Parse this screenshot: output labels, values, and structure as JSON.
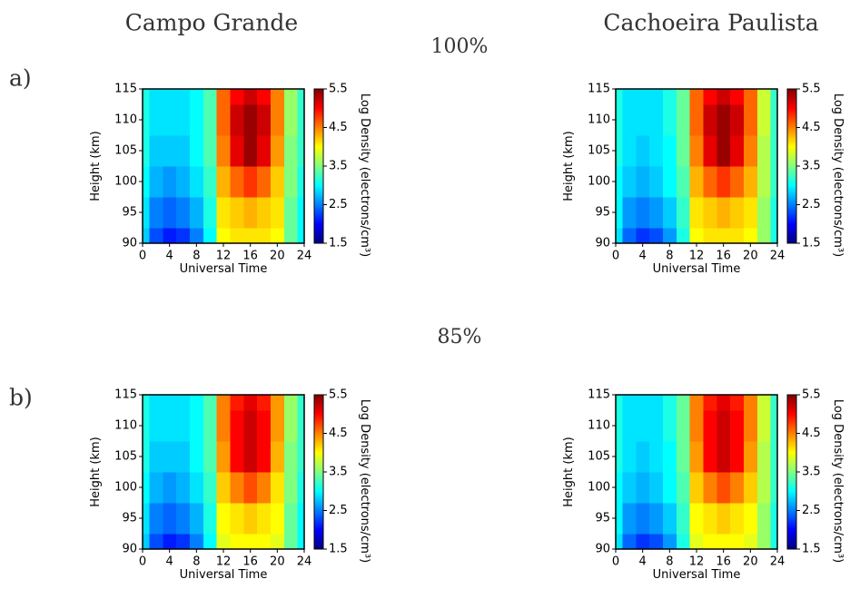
{
  "figure": {
    "columns": [
      "Campo Grande",
      "Cachoeira Paulista"
    ],
    "rows": [
      {
        "label": "a)",
        "title": "100%"
      },
      {
        "label": "b)",
        "title": "85%"
      }
    ]
  },
  "chart_data": [
    {
      "type": "heatmap",
      "xlabel": "Universal Time",
      "ylabel": "Height (km)",
      "colorbar_label": "Log Density (electrons/cm³)",
      "colormap": "jet",
      "x": [
        0,
        2,
        4,
        6,
        8,
        10,
        12,
        14,
        16,
        18,
        20,
        22,
        24
      ],
      "y": [
        90,
        95,
        100,
        105,
        110,
        115
      ],
      "z": [
        [
          2.8,
          2.3,
          2.1,
          2.2,
          2.5,
          3.0,
          4.0,
          4.1,
          4.1,
          4.1,
          4.0,
          3.4,
          3.0
        ],
        [
          2.9,
          2.5,
          2.4,
          2.5,
          2.7,
          3.1,
          4.1,
          4.2,
          4.3,
          4.2,
          4.1,
          3.4,
          3.0
        ],
        [
          3.0,
          2.7,
          2.6,
          2.7,
          2.9,
          3.2,
          4.3,
          4.6,
          4.8,
          4.6,
          4.2,
          3.5,
          3.1
        ],
        [
          3.1,
          2.8,
          2.8,
          2.8,
          3.0,
          3.3,
          4.5,
          5.1,
          5.4,
          5.1,
          4.4,
          3.5,
          3.2
        ],
        [
          3.1,
          2.9,
          2.9,
          2.9,
          3.0,
          3.3,
          4.6,
          5.2,
          5.4,
          5.2,
          4.5,
          3.6,
          3.2
        ],
        [
          3.1,
          2.9,
          2.9,
          2.9,
          3.0,
          3.3,
          4.6,
          5.0,
          5.2,
          5.0,
          4.5,
          3.6,
          3.2
        ]
      ],
      "xlim": [
        0,
        24
      ],
      "ylim": [
        90,
        115
      ],
      "xticks": [
        0,
        4,
        8,
        12,
        16,
        20,
        24
      ],
      "yticks": [
        90,
        95,
        100,
        105,
        110,
        115
      ],
      "clim": [
        1.5,
        5.5
      ],
      "cticks": [
        1.5,
        2.5,
        3.5,
        4.5,
        5.5
      ]
    },
    {
      "type": "heatmap",
      "xlabel": "Universal Time",
      "ylabel": "Height (km)",
      "colorbar_label": "Log Density (electrons/cm³)",
      "colormap": "jet",
      "x": [
        0,
        2,
        4,
        6,
        8,
        10,
        12,
        14,
        16,
        18,
        20,
        22,
        24
      ],
      "y": [
        90,
        95,
        100,
        105,
        110,
        115
      ],
      "z": [
        [
          2.9,
          2.4,
          2.2,
          2.3,
          2.6,
          3.1,
          4.0,
          4.1,
          4.1,
          4.1,
          4.0,
          3.6,
          3.1
        ],
        [
          3.0,
          2.6,
          2.5,
          2.6,
          2.8,
          3.2,
          4.1,
          4.2,
          4.3,
          4.2,
          4.1,
          3.6,
          3.1
        ],
        [
          3.0,
          2.8,
          2.7,
          2.8,
          3.0,
          3.3,
          4.3,
          4.6,
          4.8,
          4.6,
          4.3,
          3.7,
          3.2
        ],
        [
          3.1,
          2.9,
          2.8,
          2.9,
          3.0,
          3.4,
          4.5,
          5.1,
          5.4,
          5.1,
          4.5,
          3.7,
          3.2
        ],
        [
          3.1,
          2.9,
          2.9,
          2.9,
          3.1,
          3.4,
          4.6,
          5.2,
          5.4,
          5.2,
          4.6,
          3.8,
          3.2
        ],
        [
          3.1,
          2.9,
          2.9,
          2.9,
          3.1,
          3.4,
          4.6,
          5.0,
          5.2,
          5.0,
          4.6,
          3.8,
          3.2
        ]
      ],
      "xlim": [
        0,
        24
      ],
      "ylim": [
        90,
        115
      ],
      "xticks": [
        0,
        4,
        8,
        12,
        16,
        20,
        24
      ],
      "yticks": [
        90,
        95,
        100,
        105,
        110,
        115
      ],
      "clim": [
        1.5,
        5.5
      ],
      "cticks": [
        1.5,
        2.5,
        3.5,
        4.5,
        5.5
      ]
    },
    {
      "type": "heatmap",
      "xlabel": "Universal Time",
      "ylabel": "Height (km)",
      "colorbar_label": "Log Density (electrons/cm³)",
      "colormap": "jet",
      "x": [
        0,
        2,
        4,
        6,
        8,
        10,
        12,
        14,
        16,
        18,
        20,
        22,
        24
      ],
      "y": [
        90,
        95,
        100,
        105,
        110,
        115
      ],
      "z": [
        [
          2.8,
          2.3,
          2.1,
          2.2,
          2.5,
          3.0,
          3.9,
          4.0,
          4.0,
          4.0,
          3.9,
          3.4,
          3.0
        ],
        [
          2.9,
          2.5,
          2.4,
          2.5,
          2.7,
          3.1,
          4.0,
          4.1,
          4.2,
          4.1,
          4.0,
          3.4,
          3.0
        ],
        [
          3.0,
          2.7,
          2.6,
          2.7,
          2.9,
          3.2,
          4.2,
          4.5,
          4.7,
          4.5,
          4.1,
          3.5,
          3.1
        ],
        [
          3.1,
          2.8,
          2.8,
          2.8,
          3.0,
          3.3,
          4.4,
          5.0,
          5.2,
          5.0,
          4.3,
          3.5,
          3.2
        ],
        [
          3.1,
          2.9,
          2.9,
          2.9,
          3.0,
          3.3,
          4.5,
          5.0,
          5.2,
          5.0,
          4.4,
          3.6,
          3.2
        ],
        [
          3.1,
          2.9,
          2.9,
          2.9,
          3.0,
          3.3,
          4.5,
          4.9,
          5.1,
          4.9,
          4.4,
          3.6,
          3.2
        ]
      ],
      "xlim": [
        0,
        24
      ],
      "ylim": [
        90,
        115
      ],
      "xticks": [
        0,
        4,
        8,
        12,
        16,
        20,
        24
      ],
      "yticks": [
        90,
        95,
        100,
        105,
        110,
        115
      ],
      "clim": [
        1.5,
        5.5
      ],
      "cticks": [
        1.5,
        2.5,
        3.5,
        4.5,
        5.5
      ]
    },
    {
      "type": "heatmap",
      "xlabel": "Universal Time",
      "ylabel": "Height (km)",
      "colorbar_label": "Log Density (electrons/cm³)",
      "colormap": "jet",
      "x": [
        0,
        2,
        4,
        6,
        8,
        10,
        12,
        14,
        16,
        18,
        20,
        22,
        24
      ],
      "y": [
        90,
        95,
        100,
        105,
        110,
        115
      ],
      "z": [
        [
          2.9,
          2.4,
          2.2,
          2.3,
          2.6,
          3.1,
          3.9,
          4.0,
          4.0,
          4.0,
          3.9,
          3.6,
          3.1
        ],
        [
          3.0,
          2.6,
          2.5,
          2.6,
          2.8,
          3.2,
          4.0,
          4.1,
          4.2,
          4.1,
          4.0,
          3.6,
          3.1
        ],
        [
          3.0,
          2.8,
          2.7,
          2.8,
          3.0,
          3.3,
          4.2,
          4.5,
          4.7,
          4.5,
          4.2,
          3.7,
          3.2
        ],
        [
          3.1,
          2.9,
          2.8,
          2.9,
          3.0,
          3.4,
          4.4,
          5.0,
          5.2,
          5.0,
          4.4,
          3.7,
          3.2
        ],
        [
          3.1,
          2.9,
          2.9,
          2.9,
          3.1,
          3.4,
          4.5,
          5.0,
          5.2,
          5.0,
          4.5,
          3.8,
          3.2
        ],
        [
          3.1,
          2.9,
          2.9,
          2.9,
          3.1,
          3.4,
          4.5,
          4.9,
          5.1,
          4.9,
          4.5,
          3.8,
          3.2
        ]
      ],
      "xlim": [
        0,
        24
      ],
      "ylim": [
        90,
        115
      ],
      "xticks": [
        0,
        4,
        8,
        12,
        16,
        20,
        24
      ],
      "yticks": [
        90,
        95,
        100,
        105,
        110,
        115
      ],
      "clim": [
        1.5,
        5.5
      ],
      "cticks": [
        1.5,
        2.5,
        3.5,
        4.5,
        5.5
      ]
    }
  ]
}
